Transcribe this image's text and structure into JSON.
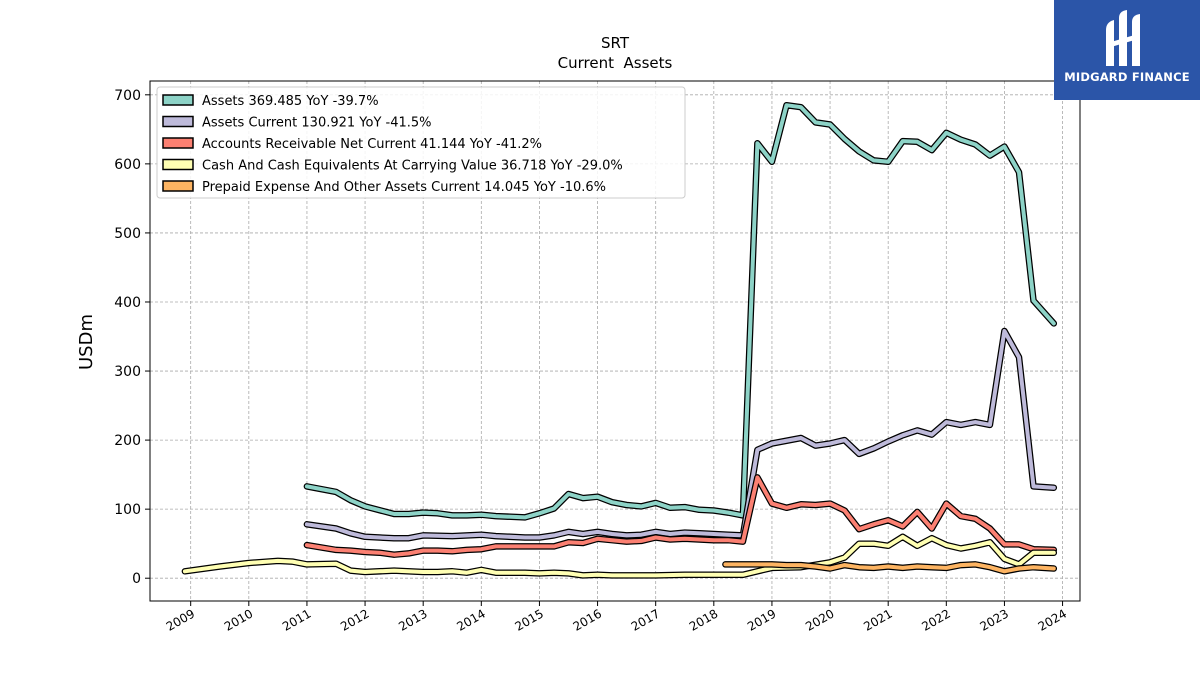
{
  "chart_data": {
    "type": "line",
    "title": "SRT",
    "subtitle": "Current  Assets",
    "xlabel": "",
    "ylabel": "USDm",
    "xlim": [
      2008.3,
      2024.3
    ],
    "ylim": [
      -33,
      720
    ],
    "x_ticks": [
      "2009",
      "2010",
      "2011",
      "2012",
      "2013",
      "2014",
      "2015",
      "2016",
      "2017",
      "2018",
      "2019",
      "2020",
      "2021",
      "2022",
      "2023",
      "2024"
    ],
    "y_ticks": [
      "0",
      "100",
      "200",
      "300",
      "400",
      "500",
      "600",
      "700"
    ],
    "grid": true,
    "legend_position": "top-left",
    "series": [
      {
        "name": "Assets  369.485 YoY -39.7%",
        "color": "#8dd3c7",
        "points": [
          [
            2011.0,
            133
          ],
          [
            2011.5,
            125
          ],
          [
            2011.75,
            113
          ],
          [
            2012.0,
            104
          ],
          [
            2012.5,
            93
          ],
          [
            2012.75,
            93
          ],
          [
            2013.0,
            95
          ],
          [
            2013.25,
            94
          ],
          [
            2013.5,
            91
          ],
          [
            2013.75,
            91
          ],
          [
            2014.0,
            92
          ],
          [
            2014.25,
            90
          ],
          [
            2014.75,
            88
          ],
          [
            2015.0,
            94
          ],
          [
            2015.25,
            101
          ],
          [
            2015.5,
            122
          ],
          [
            2015.75,
            116
          ],
          [
            2016.0,
            118
          ],
          [
            2016.25,
            110
          ],
          [
            2016.5,
            106
          ],
          [
            2016.75,
            104
          ],
          [
            2017.0,
            109
          ],
          [
            2017.25,
            102
          ],
          [
            2017.5,
            103
          ],
          [
            2017.75,
            99
          ],
          [
            2018.0,
            98
          ],
          [
            2018.25,
            95
          ],
          [
            2018.5,
            91
          ],
          [
            2018.75,
            630
          ],
          [
            2019.0,
            603
          ],
          [
            2019.25,
            685
          ],
          [
            2019.5,
            682
          ],
          [
            2019.75,
            660
          ],
          [
            2020.0,
            657
          ],
          [
            2020.25,
            636
          ],
          [
            2020.5,
            618
          ],
          [
            2020.75,
            605
          ],
          [
            2021.0,
            603
          ],
          [
            2021.25,
            633
          ],
          [
            2021.5,
            632
          ],
          [
            2021.75,
            620
          ],
          [
            2022.0,
            645
          ],
          [
            2022.25,
            635
          ],
          [
            2022.5,
            628
          ],
          [
            2022.75,
            612
          ],
          [
            2023.0,
            625
          ],
          [
            2023.25,
            588
          ],
          [
            2023.5,
            402
          ],
          [
            2023.85,
            369
          ]
        ]
      },
      {
        "name": "Assets Current  130.921 YoY -41.5%",
        "color": "#bebada",
        "points": [
          [
            2011.0,
            78
          ],
          [
            2011.5,
            72
          ],
          [
            2011.75,
            65
          ],
          [
            2012.0,
            60
          ],
          [
            2012.5,
            58
          ],
          [
            2012.75,
            58
          ],
          [
            2013.0,
            62
          ],
          [
            2013.5,
            61
          ],
          [
            2014.0,
            63
          ],
          [
            2014.25,
            61
          ],
          [
            2014.75,
            59
          ],
          [
            2015.0,
            59
          ],
          [
            2015.25,
            62
          ],
          [
            2015.5,
            67
          ],
          [
            2015.75,
            64
          ],
          [
            2016.0,
            67
          ],
          [
            2016.25,
            64
          ],
          [
            2016.5,
            62
          ],
          [
            2016.75,
            63
          ],
          [
            2017.0,
            67
          ],
          [
            2017.25,
            64
          ],
          [
            2017.5,
            66
          ],
          [
            2017.75,
            65
          ],
          [
            2018.0,
            64
          ],
          [
            2018.25,
            63
          ],
          [
            2018.5,
            62
          ],
          [
            2018.75,
            186
          ],
          [
            2019.0,
            195
          ],
          [
            2019.5,
            203
          ],
          [
            2019.75,
            192
          ],
          [
            2020.0,
            195
          ],
          [
            2020.25,
            200
          ],
          [
            2020.5,
            180
          ],
          [
            2020.75,
            188
          ],
          [
            2021.0,
            198
          ],
          [
            2021.25,
            207
          ],
          [
            2021.5,
            214
          ],
          [
            2021.75,
            208
          ],
          [
            2022.0,
            226
          ],
          [
            2022.25,
            222
          ],
          [
            2022.5,
            226
          ],
          [
            2022.75,
            222
          ],
          [
            2023.0,
            358
          ],
          [
            2023.25,
            320
          ],
          [
            2023.5,
            133
          ],
          [
            2023.85,
            131
          ]
        ]
      },
      {
        "name": "Accounts Receivable Net Current  41.144 YoY -41.2%",
        "color": "#fb8072",
        "points": [
          [
            2011.0,
            48
          ],
          [
            2011.5,
            41
          ],
          [
            2011.75,
            40
          ],
          [
            2012.0,
            38
          ],
          [
            2012.25,
            37
          ],
          [
            2012.5,
            34
          ],
          [
            2012.75,
            36
          ],
          [
            2013.0,
            40
          ],
          [
            2013.25,
            40
          ],
          [
            2013.5,
            39
          ],
          [
            2013.75,
            41
          ],
          [
            2014.0,
            42
          ],
          [
            2014.25,
            46
          ],
          [
            2014.75,
            46
          ],
          [
            2015.0,
            46
          ],
          [
            2015.25,
            46
          ],
          [
            2015.5,
            52
          ],
          [
            2015.75,
            51
          ],
          [
            2016.0,
            57
          ],
          [
            2016.25,
            55
          ],
          [
            2016.5,
            53
          ],
          [
            2016.75,
            54
          ],
          [
            2017.0,
            59
          ],
          [
            2017.25,
            56
          ],
          [
            2017.5,
            57
          ],
          [
            2017.75,
            56
          ],
          [
            2018.0,
            55
          ],
          [
            2018.25,
            55
          ],
          [
            2018.5,
            53
          ],
          [
            2018.75,
            146
          ],
          [
            2019.0,
            108
          ],
          [
            2019.25,
            102
          ],
          [
            2019.5,
            107
          ],
          [
            2019.75,
            106
          ],
          [
            2020.0,
            108
          ],
          [
            2020.25,
            98
          ],
          [
            2020.5,
            71
          ],
          [
            2020.75,
            78
          ],
          [
            2021.0,
            84
          ],
          [
            2021.25,
            75
          ],
          [
            2021.5,
            96
          ],
          [
            2021.75,
            72
          ],
          [
            2022.0,
            108
          ],
          [
            2022.25,
            90
          ],
          [
            2022.5,
            86
          ],
          [
            2022.75,
            72
          ],
          [
            2023.0,
            49
          ],
          [
            2023.25,
            49
          ],
          [
            2023.5,
            42
          ],
          [
            2023.85,
            41
          ]
        ]
      },
      {
        "name": "Cash And Cash Equivalents At Carrying Value  36.718 YoY -29.0%",
        "color": "#ffffb3",
        "points": [
          [
            2008.9,
            10
          ],
          [
            2009.5,
            17
          ],
          [
            2010.0,
            22
          ],
          [
            2010.5,
            25
          ],
          [
            2010.75,
            24
          ],
          [
            2011.0,
            20
          ],
          [
            2011.5,
            21
          ],
          [
            2011.75,
            11
          ],
          [
            2012.0,
            9
          ],
          [
            2012.5,
            11
          ],
          [
            2013.0,
            9
          ],
          [
            2013.25,
            9
          ],
          [
            2013.5,
            10
          ],
          [
            2013.75,
            8
          ],
          [
            2014.0,
            12
          ],
          [
            2014.25,
            8
          ],
          [
            2014.75,
            8
          ],
          [
            2015.0,
            7
          ],
          [
            2015.25,
            8
          ],
          [
            2015.5,
            7
          ],
          [
            2015.75,
            4
          ],
          [
            2016.0,
            5
          ],
          [
            2016.25,
            4
          ],
          [
            2016.5,
            4
          ],
          [
            2016.75,
            4
          ],
          [
            2017.0,
            4
          ],
          [
            2017.5,
            5
          ],
          [
            2017.75,
            5
          ],
          [
            2018.0,
            5
          ],
          [
            2018.5,
            5
          ],
          [
            2018.75,
            10
          ],
          [
            2019.0,
            15
          ],
          [
            2019.5,
            16
          ],
          [
            2020.0,
            23
          ],
          [
            2020.25,
            30
          ],
          [
            2020.5,
            50
          ],
          [
            2020.75,
            50
          ],
          [
            2021.0,
            47
          ],
          [
            2021.25,
            60
          ],
          [
            2021.5,
            47
          ],
          [
            2021.75,
            58
          ],
          [
            2022.0,
            48
          ],
          [
            2022.25,
            43
          ],
          [
            2022.5,
            47
          ],
          [
            2022.75,
            52
          ],
          [
            2023.0,
            28
          ],
          [
            2023.25,
            20
          ],
          [
            2023.5,
            37
          ],
          [
            2023.85,
            37
          ]
        ]
      },
      {
        "name": "Prepaid Expense And Other Assets Current  14.045 YoY -10.6%",
        "color": "#fdb462",
        "points": [
          [
            2018.2,
            20
          ],
          [
            2018.5,
            20
          ],
          [
            2018.75,
            20
          ],
          [
            2019.0,
            20
          ],
          [
            2019.25,
            19
          ],
          [
            2019.5,
            19
          ],
          [
            2019.75,
            17
          ],
          [
            2020.0,
            14
          ],
          [
            2020.25,
            19
          ],
          [
            2020.5,
            16
          ],
          [
            2020.75,
            15
          ],
          [
            2021.0,
            17
          ],
          [
            2021.25,
            15
          ],
          [
            2021.5,
            17
          ],
          [
            2021.75,
            16
          ],
          [
            2022.0,
            15
          ],
          [
            2022.25,
            19
          ],
          [
            2022.5,
            20
          ],
          [
            2022.75,
            16
          ],
          [
            2023.0,
            10
          ],
          [
            2023.25,
            14
          ],
          [
            2023.5,
            16
          ],
          [
            2023.85,
            14
          ]
        ]
      }
    ]
  },
  "logo": {
    "text": "MIDGARD FINANCE"
  }
}
